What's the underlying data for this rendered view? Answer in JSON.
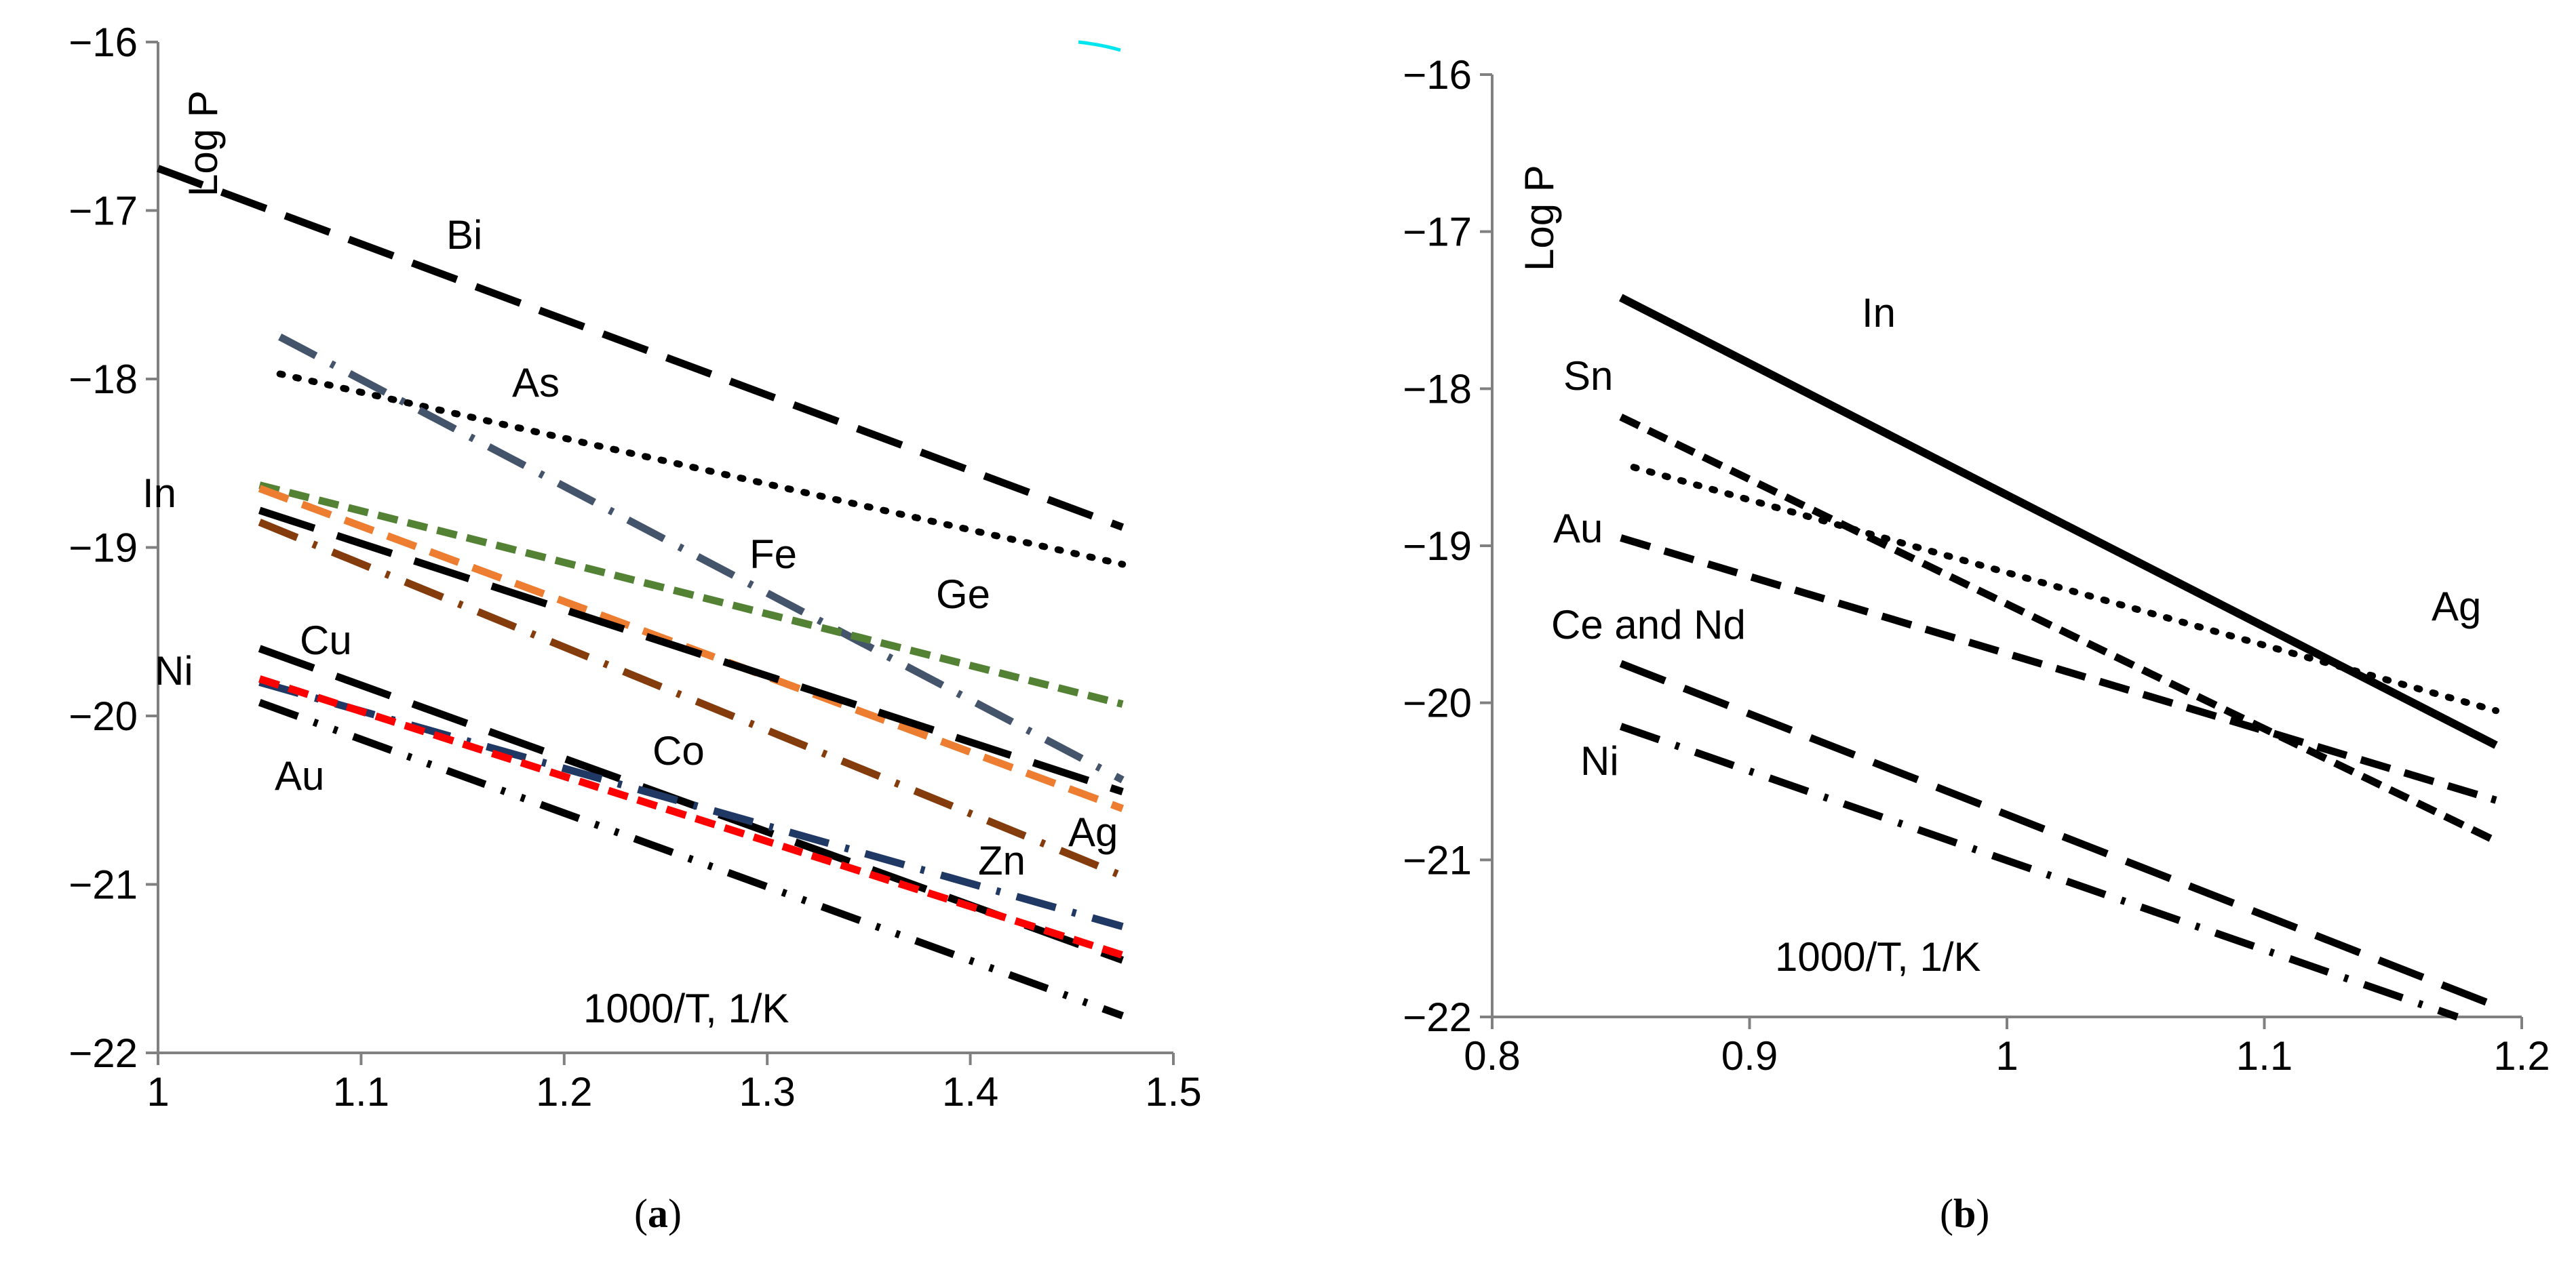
{
  "chart_data": [
    {
      "type": "line",
      "caption_letter": "a",
      "ylabel": "Log P",
      "xlabel": "1000/T, 1/K",
      "xlim": [
        1,
        1.5
      ],
      "ylim": [
        -22,
        -16
      ],
      "xticks": [
        "1",
        "1.1",
        "1.2",
        "1.3",
        "1.4",
        "1.5"
      ],
      "yticks": [
        "−16",
        "−17",
        "−18",
        "−19",
        "−20",
        "−21",
        "−22"
      ],
      "series": [
        {
          "name": "Bi",
          "x": [
            1.0,
            1.475
          ],
          "y": [
            -16.75,
            -18.88
          ],
          "color": "#000000",
          "dash": "long"
        },
        {
          "name": "As",
          "x": [
            1.06,
            1.475
          ],
          "y": [
            -17.97,
            -19.1
          ],
          "color": "#000000",
          "dash": "dot"
        },
        {
          "name": "Fe",
          "x": [
            1.06,
            1.475
          ],
          "y": [
            -17.75,
            -20.38
          ],
          "color": "#44546A",
          "dash": "dashdot"
        },
        {
          "name": "Ge",
          "x": [
            1.05,
            1.475
          ],
          "y": [
            -18.63,
            -19.93
          ],
          "color": "#548235",
          "dash": "short"
        },
        {
          "name": "Ag",
          "x": [
            1.05,
            1.475
          ],
          "y": [
            -18.65,
            -20.55
          ],
          "color": "#ED7D31",
          "dash": "medium"
        },
        {
          "name": "In",
          "x": [
            1.05,
            1.475
          ],
          "y": [
            -18.78,
            -20.45
          ],
          "color": "#000000",
          "dash": "longdash"
        },
        {
          "name": "Zn",
          "x": [
            1.05,
            1.475
          ],
          "y": [
            -18.85,
            -20.95
          ],
          "color": "#843C0C",
          "dash": "dashdot"
        },
        {
          "name": "Cu",
          "x": [
            1.05,
            1.475
          ],
          "y": [
            -19.6,
            -21.45
          ],
          "color": "#000000",
          "dash": "longdash"
        },
        {
          "name": "Co",
          "x": [
            1.05,
            1.475
          ],
          "y": [
            -19.8,
            -21.25
          ],
          "color": "#1F3864",
          "dash": "dashdot"
        },
        {
          "name": "Ni",
          "x": [
            1.05,
            1.475
          ],
          "y": [
            -19.78,
            -21.42
          ],
          "color": "#FF0000",
          "dash": "short"
        },
        {
          "name": "Au",
          "x": [
            1.05,
            1.475
          ],
          "y": [
            -19.92,
            -21.78
          ],
          "color": "#000000",
          "dash": "dashdotdot"
        }
      ],
      "annotations": [
        "Bi",
        "As",
        "In",
        "Fe",
        "Ge",
        "Cu",
        "Ni",
        "Co",
        "Au",
        "Ag",
        "Zn"
      ]
    },
    {
      "type": "line",
      "caption_letter": "b",
      "ylabel": "Log P",
      "xlabel": "1000/T, 1/K",
      "xlim": [
        0.8,
        1.2
      ],
      "ylim": [
        -22,
        -16
      ],
      "xticks": [
        "0.8",
        "0.9",
        "1",
        "1.1",
        "1.2"
      ],
      "yticks": [
        "−16",
        "−17",
        "−18",
        "−19",
        "−20",
        "−21",
        "−22"
      ],
      "series": [
        {
          "name": "In",
          "x": [
            0.85,
            1.19
          ],
          "y": [
            -17.42,
            -20.27
          ],
          "color": "#000000",
          "dash": "solid"
        },
        {
          "name": "Ag",
          "x": [
            0.855,
            1.19
          ],
          "y": [
            -18.5,
            -20.05
          ],
          "color": "#000000",
          "dash": "dot"
        },
        {
          "name": "Sn",
          "x": [
            0.85,
            1.19
          ],
          "y": [
            -18.18,
            -20.88
          ],
          "color": "#000000",
          "dash": "short"
        },
        {
          "name": "Au",
          "x": [
            0.85,
            1.19
          ],
          "y": [
            -18.95,
            -20.62
          ],
          "color": "#000000",
          "dash": "medium"
        },
        {
          "name": "Ce and Nd",
          "x": [
            0.85,
            1.19
          ],
          "y": [
            -19.75,
            -21.93
          ],
          "color": "#000000",
          "dash": "long"
        },
        {
          "name": "Ni",
          "x": [
            0.85,
            1.175
          ],
          "y": [
            -20.15,
            -22.0
          ],
          "color": "#000000",
          "dash": "dashdot"
        }
      ],
      "annotations": [
        "In",
        "Sn",
        "Au",
        "Ag",
        "Ce and Nd",
        "Ni"
      ]
    }
  ]
}
